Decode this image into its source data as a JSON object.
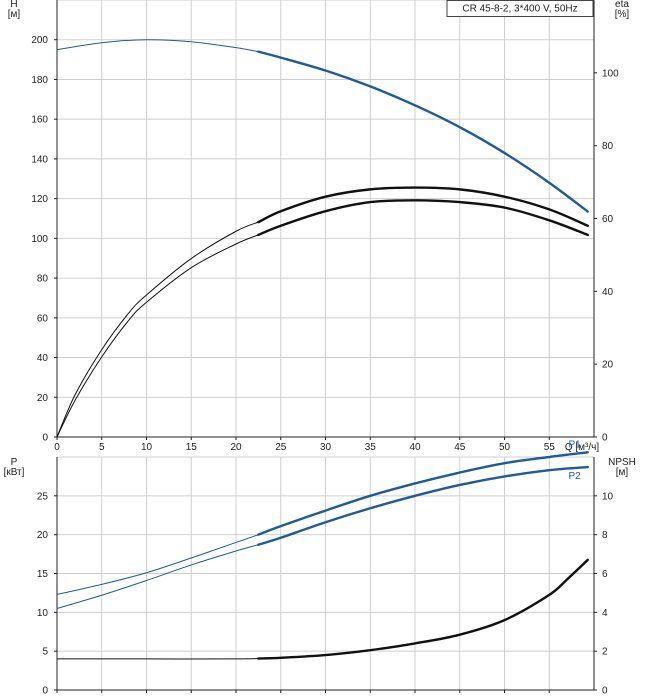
{
  "chart_data": [
    {
      "type": "line",
      "title": "CR 45-8-2, 3*400 V, 50Hz",
      "xlabel": "Q [м³/ч]",
      "ylabel_left": "H\n[м]",
      "ylabel_right": "eta\n[%]",
      "xlim": [
        0,
        60
      ],
      "x_ticks": [
        0,
        5,
        10,
        15,
        20,
        25,
        30,
        35,
        40,
        45,
        50,
        55
      ],
      "ylim_left": [
        0,
        220
      ],
      "y_ticks_left": [
        0,
        20,
        40,
        60,
        80,
        100,
        120,
        140,
        160,
        180,
        200
      ],
      "ylim_right": [
        0,
        120
      ],
      "y_ticks_right": [
        0,
        20,
        40,
        60,
        80,
        100
      ],
      "grid": true,
      "series": [
        {
          "axis": "left",
          "color": "#1f5a9a",
          "x": [
            0,
            5,
            10,
            15,
            20,
            22.5,
            25,
            30,
            35,
            40,
            45,
            50,
            55,
            59.3
          ],
          "values": [
            195,
            198.5,
            200,
            199,
            196,
            194,
            191,
            184.5,
            176.5,
            167,
            156,
            143,
            128,
            113.5
          ]
        },
        {
          "axis": "right",
          "color": "#111111",
          "x": [
            0,
            2,
            5,
            8,
            10,
            15,
            20,
            22.5,
            25,
            30,
            35,
            40,
            45,
            50,
            55,
            59.3
          ],
          "values": [
            0,
            11.5,
            24,
            34,
            39,
            49,
            56.5,
            59,
            62,
            66,
            68,
            68.5,
            68,
            66,
            62.5,
            58
          ]
        },
        {
          "axis": "right",
          "color": "#111111",
          "x": [
            0,
            2,
            5,
            8,
            10,
            15,
            20,
            22.5,
            25,
            30,
            35,
            40,
            45,
            50,
            55,
            59.3
          ],
          "values": [
            0,
            10,
            22,
            32,
            37,
            46.5,
            53,
            55.5,
            58,
            62,
            64.5,
            65,
            64.5,
            63,
            59.5,
            55.5
          ]
        }
      ]
    },
    {
      "type": "line",
      "xlabel": "",
      "ylabel_left": "P\n[кВт]",
      "ylabel_right": "NPSH\n[м]",
      "xlim": [
        0,
        60
      ],
      "x_ticks": [
        0,
        5,
        10,
        15,
        20,
        25,
        30,
        35,
        40,
        45,
        50,
        55
      ],
      "ylim_left": [
        0,
        30
      ],
      "y_ticks_left": [
        0,
        5,
        10,
        15,
        20,
        25
      ],
      "ylim_right": [
        0,
        12
      ],
      "y_ticks_right": [
        0,
        2,
        4,
        6,
        8,
        10
      ],
      "grid": true,
      "series": [
        {
          "name": "P1",
          "axis": "left",
          "color": "#1f5a9a",
          "x": [
            0,
            5,
            10,
            15,
            20,
            22.5,
            25,
            30,
            35,
            40,
            45,
            50,
            55,
            59.3
          ],
          "values": [
            12.3,
            13.6,
            15.1,
            17.0,
            19.0,
            20.0,
            21.1,
            23.1,
            25.0,
            26.6,
            28.0,
            29.2,
            30.0,
            30.6
          ]
        },
        {
          "name": "P2",
          "axis": "left",
          "color": "#1f5a9a",
          "x": [
            0,
            5,
            10,
            15,
            20,
            22.5,
            25,
            30,
            35,
            40,
            45,
            50,
            55,
            59.3
          ],
          "values": [
            10.5,
            12.2,
            14.1,
            16.1,
            17.9,
            18.7,
            19.6,
            21.6,
            23.4,
            25.0,
            26.4,
            27.5,
            28.3,
            28.7
          ]
        },
        {
          "axis": "right",
          "color": "#111111",
          "x": [
            0,
            10,
            20,
            22.5,
            25,
            30,
            35,
            40,
            45,
            50,
            55,
            57,
            59.3
          ],
          "values": [
            1.6,
            1.6,
            1.6,
            1.62,
            1.66,
            1.8,
            2.05,
            2.4,
            2.85,
            3.6,
            4.9,
            5.7,
            6.7
          ]
        }
      ]
    }
  ]
}
